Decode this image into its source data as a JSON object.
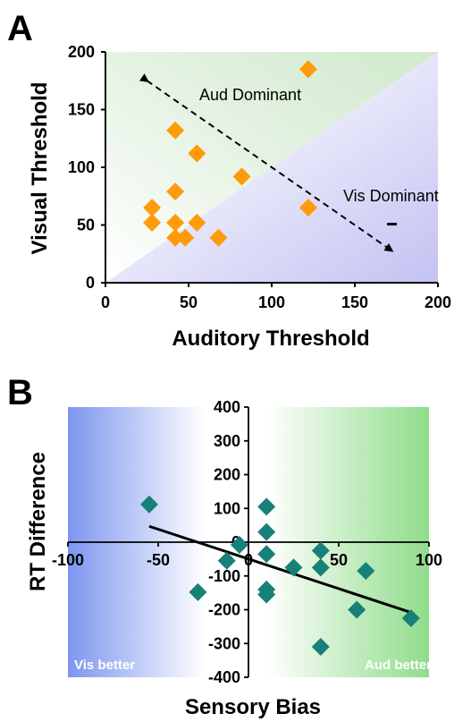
{
  "chart_data": [
    {
      "panel": "A",
      "type": "scatter",
      "xlabel": "Auditory Threshold",
      "ylabel": "Visual Threshold",
      "xlim": [
        0,
        200
      ],
      "ylim": [
        0,
        200
      ],
      "xticks": [
        "0",
        "50",
        "100",
        "150",
        "200"
      ],
      "yticks": [
        "0",
        "50",
        "100",
        "150",
        "200"
      ],
      "annotations": [
        "Aud Dominant",
        "Vis Dominant"
      ],
      "marker": "diamond",
      "marker_color": "#ff9a0a",
      "background": {
        "upper_left": "#d6ecd3",
        "lower_right": "#c9c8f4"
      },
      "points": [
        {
          "x": 28,
          "y": 65
        },
        {
          "x": 28,
          "y": 52
        },
        {
          "x": 42,
          "y": 132
        },
        {
          "x": 42,
          "y": 79
        },
        {
          "x": 42,
          "y": 52
        },
        {
          "x": 42,
          "y": 39
        },
        {
          "x": 48,
          "y": 39
        },
        {
          "x": 55,
          "y": 112
        },
        {
          "x": 55,
          "y": 52
        },
        {
          "x": 68,
          "y": 39
        },
        {
          "x": 82,
          "y": 92
        },
        {
          "x": 122,
          "y": 185
        },
        {
          "x": 122,
          "y": 65
        }
      ],
      "arrow": {
        "from": [
          25,
          175
        ],
        "to": [
          172,
          28
        ]
      }
    },
    {
      "panel": "B",
      "type": "scatter",
      "xlabel": "Sensory Bias",
      "ylabel": "RT Difference",
      "xlim": [
        -100,
        100
      ],
      "ylim": [
        -400,
        400
      ],
      "xticks": [
        "-100",
        "-50",
        "0",
        "50",
        "100"
      ],
      "yticks": [
        "400",
        "300",
        "200",
        "100",
        "0",
        "-100",
        "-200",
        "-300",
        "-400"
      ],
      "corner_labels": {
        "left": "Vis better",
        "right": "Aud better"
      },
      "marker": "diamond",
      "marker_color": "#168079",
      "background": {
        "left": "#7d96ee",
        "right": "#8fdc8a"
      },
      "points": [
        {
          "x": -55,
          "y": 112
        },
        {
          "x": -28,
          "y": -148
        },
        {
          "x": -12,
          "y": -55
        },
        {
          "x": -5,
          "y": -8
        },
        {
          "x": 10,
          "y": 105
        },
        {
          "x": 10,
          "y": 30
        },
        {
          "x": 10,
          "y": -35
        },
        {
          "x": 10,
          "y": -140
        },
        {
          "x": 10,
          "y": -155
        },
        {
          "x": 25,
          "y": -75
        },
        {
          "x": 40,
          "y": -25
        },
        {
          "x": 40,
          "y": -75
        },
        {
          "x": 40,
          "y": -310
        },
        {
          "x": 60,
          "y": -200
        },
        {
          "x": 65,
          "y": -85
        },
        {
          "x": 90,
          "y": -225
        }
      ],
      "trendline": {
        "x": [
          -55,
          90
        ],
        "y": [
          47,
          -208
        ]
      }
    }
  ]
}
